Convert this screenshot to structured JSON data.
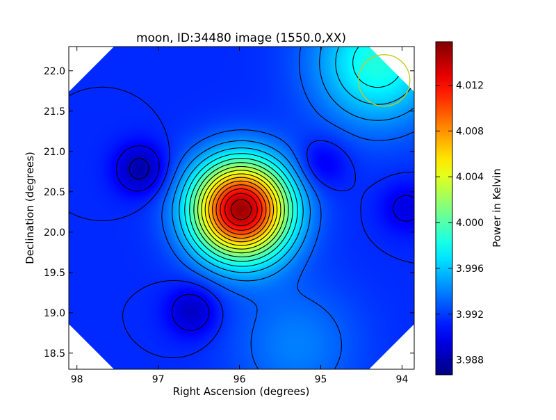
{
  "chart_data": {
    "type": "heatmap",
    "title": "moon, ID:34480 image (1550.0,XX)",
    "xlabel": "Right Ascension (degrees)",
    "ylabel": "Declination (degrees)",
    "xlim": [
      98.1,
      93.85
    ],
    "ylim": [
      18.3,
      22.3
    ],
    "x_ticks": [
      98,
      97,
      96,
      95,
      94
    ],
    "x_tick_labels": [
      "98",
      "97",
      "96",
      "95",
      "94"
    ],
    "y_ticks": [
      18.5,
      19.0,
      19.5,
      20.0,
      20.5,
      21.0,
      21.5,
      22.0
    ],
    "y_tick_labels": [
      "18.5",
      "19.0",
      "19.5",
      "20.0",
      "20.5",
      "21.0",
      "21.5",
      "22.0"
    ],
    "colorbar": {
      "label": "Power in Kelvin",
      "range": [
        3.9867,
        4.0158
      ],
      "ticks": [
        3.988,
        3.992,
        3.996,
        4.0,
        4.004,
        4.008,
        4.012
      ],
      "tick_labels": [
        "3.988",
        "3.992",
        "3.996",
        "4.000",
        "4.004",
        "4.008",
        "4.012"
      ],
      "colormap": "jet"
    },
    "background_level": 3.9915,
    "features": [
      {
        "kind": "peak",
        "ra": 95.98,
        "dec": 20.28,
        "value": 4.015
      },
      {
        "kind": "trough",
        "ra": 97.22,
        "dec": 20.78,
        "value": 3.9878
      },
      {
        "kind": "trough",
        "ra": 94.98,
        "dec": 20.85,
        "value": 3.9895
      },
      {
        "kind": "trough",
        "ra": 96.58,
        "dec": 19.02,
        "value": 3.9885
      },
      {
        "kind": "trough",
        "ra": 93.95,
        "dec": 20.3,
        "value": 3.9895
      },
      {
        "kind": "warm region",
        "ra": 94.3,
        "dec": 22.1,
        "value": 3.9985
      },
      {
        "kind": "warm region",
        "ra": 95.3,
        "dec": 18.6,
        "value": 3.994
      }
    ],
    "beam_marker": {
      "ra": 94.22,
      "dec": 21.88,
      "color": "#c8c820"
    },
    "map_corner_cut": true
  },
  "colors": {
    "contour": "#000000",
    "beam": "#c8c820"
  }
}
